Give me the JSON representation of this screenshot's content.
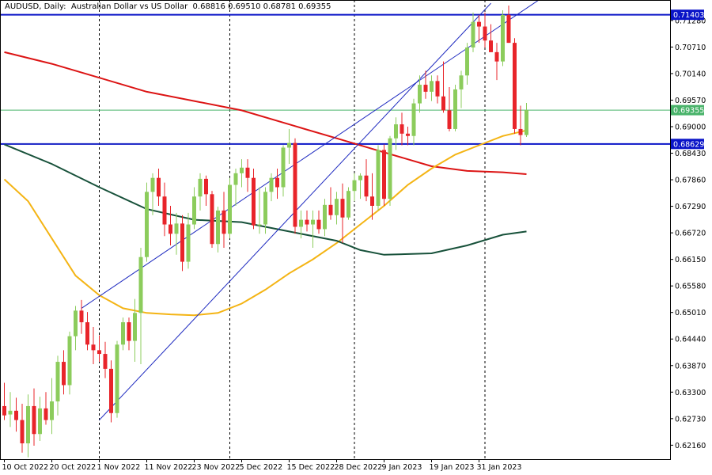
{
  "header": {
    "symbol": "AUDUSD",
    "timeframe": "Daily",
    "description": "Australian Dollar vs US Dollar",
    "ohlc": "0.68816 0.69510 0.68781 0.69355",
    "text": "AUDUSD, Daily:  Australian Dollar vs US Dollar  0.68816 0.69510 0.68781 0.69355"
  },
  "colors": {
    "bull": "#8ccc5c",
    "bear": "#e8242a",
    "ma_red": "#dc1414",
    "ma_orange": "#f4b414",
    "ma_green": "#17513a",
    "level": "#0a14c8",
    "channel": "#1f2bc0",
    "price_line": "#49b36a",
    "grid_v": "#000000"
  },
  "chart_data": {
    "type": "candlestick",
    "title": "AUDUSD, Daily: Australian Dollar vs US Dollar",
    "ylim": [
      0.6186,
      0.7172
    ],
    "y_ticks": [
      "0.71280",
      "0.70710",
      "0.70140",
      "0.69570",
      "0.69000",
      "0.68430",
      "0.67860",
      "0.67290",
      "0.66720",
      "0.66150",
      "0.65580",
      "0.65010",
      "0.64440",
      "0.63870",
      "0.63300",
      "0.62730",
      "0.62160"
    ],
    "x_ticks": [
      {
        "label": "10 Oct 2022",
        "index": 0
      },
      {
        "label": "20 Oct 2022",
        "index": 8
      },
      {
        "label": "1 Nov 2022",
        "index": 16
      },
      {
        "label": "11 Nov 2022",
        "index": 24
      },
      {
        "label": "23 Nov 2022",
        "index": 32
      },
      {
        "label": "5 Dec 2022",
        "index": 40
      },
      {
        "label": "15 Dec 2022",
        "index": 48
      },
      {
        "label": "28 Dec 2022",
        "index": 56
      },
      {
        "label": "9 Jan 2023",
        "index": 64
      },
      {
        "label": "19 Jan 2023",
        "index": 72
      },
      {
        "label": "31 Jan 2023",
        "index": 80
      }
    ],
    "vertical_lines": [
      16,
      38,
      59,
      81
    ],
    "candles": [
      [
        0.63,
        0.635,
        0.627,
        0.628
      ],
      [
        0.6282,
        0.633,
        0.6255,
        0.629
      ],
      [
        0.629,
        0.6318,
        0.6245,
        0.627
      ],
      [
        0.627,
        0.6305,
        0.62,
        0.622
      ],
      [
        0.622,
        0.6325,
        0.619,
        0.63
      ],
      [
        0.63,
        0.6338,
        0.6215,
        0.624
      ],
      [
        0.624,
        0.632,
        0.6225,
        0.6295
      ],
      [
        0.6295,
        0.633,
        0.626,
        0.627
      ],
      [
        0.627,
        0.636,
        0.624,
        0.631
      ],
      [
        0.631,
        0.6408,
        0.628,
        0.6395
      ],
      [
        0.6395,
        0.642,
        0.6325,
        0.6345
      ],
      [
        0.6345,
        0.646,
        0.6325,
        0.645
      ],
      [
        0.645,
        0.6515,
        0.642,
        0.6505
      ],
      [
        0.6505,
        0.6528,
        0.6455,
        0.648
      ],
      [
        0.648,
        0.6502,
        0.642,
        0.6432
      ],
      [
        0.6432,
        0.647,
        0.639,
        0.642
      ],
      [
        0.642,
        0.6452,
        0.6395,
        0.6412
      ],
      [
        0.6412,
        0.6438,
        0.636,
        0.638
      ],
      [
        0.638,
        0.6398,
        0.6265,
        0.6285
      ],
      [
        0.6285,
        0.644,
        0.6275,
        0.6432
      ],
      [
        0.6432,
        0.649,
        0.642,
        0.648
      ],
      [
        0.648,
        0.649,
        0.642,
        0.644
      ],
      [
        0.644,
        0.653,
        0.6395,
        0.65
      ],
      [
        0.65,
        0.664,
        0.639,
        0.662
      ],
      [
        0.662,
        0.678,
        0.661,
        0.676
      ],
      [
        0.676,
        0.68,
        0.671,
        0.679
      ],
      [
        0.679,
        0.681,
        0.673,
        0.675
      ],
      [
        0.675,
        0.678,
        0.6665,
        0.669
      ],
      [
        0.669,
        0.673,
        0.6645,
        0.667
      ],
      [
        0.667,
        0.6715,
        0.6625,
        0.6692
      ],
      [
        0.6692,
        0.671,
        0.659,
        0.661
      ],
      [
        0.661,
        0.6715,
        0.6595,
        0.669
      ],
      [
        0.669,
        0.677,
        0.668,
        0.675
      ],
      [
        0.675,
        0.68,
        0.672,
        0.6788
      ],
      [
        0.6788,
        0.6795,
        0.673,
        0.6755
      ],
      [
        0.6755,
        0.6762,
        0.664,
        0.6648
      ],
      [
        0.6648,
        0.6728,
        0.663,
        0.672
      ],
      [
        0.672,
        0.676,
        0.664,
        0.667
      ],
      [
        0.667,
        0.679,
        0.666,
        0.6775
      ],
      [
        0.6775,
        0.681,
        0.673,
        0.68
      ],
      [
        0.68,
        0.683,
        0.677,
        0.6812
      ],
      [
        0.6812,
        0.683,
        0.676,
        0.679
      ],
      [
        0.679,
        0.681,
        0.668,
        0.6688
      ],
      [
        0.6688,
        0.677,
        0.667,
        0.669
      ],
      [
        0.669,
        0.677,
        0.667,
        0.676
      ],
      [
        0.676,
        0.68,
        0.674,
        0.679
      ],
      [
        0.679,
        0.681,
        0.6745,
        0.677
      ],
      [
        0.677,
        0.686,
        0.675,
        0.6855
      ],
      [
        0.6855,
        0.6895,
        0.682,
        0.6865
      ],
      [
        0.6865,
        0.6875,
        0.667,
        0.6685
      ],
      [
        0.6685,
        0.672,
        0.666,
        0.67
      ],
      [
        0.67,
        0.672,
        0.6675,
        0.669
      ],
      [
        0.669,
        0.672,
        0.664,
        0.67
      ],
      [
        0.67,
        0.672,
        0.667,
        0.668
      ],
      [
        0.668,
        0.6745,
        0.6665,
        0.6732
      ],
      [
        0.6732,
        0.677,
        0.67,
        0.671
      ],
      [
        0.671,
        0.676,
        0.669,
        0.6745
      ],
      [
        0.6745,
        0.6778,
        0.665,
        0.6705
      ],
      [
        0.6705,
        0.677,
        0.67,
        0.6762
      ],
      [
        0.6762,
        0.68,
        0.674,
        0.6785
      ],
      [
        0.6785,
        0.68,
        0.6745,
        0.6795
      ],
      [
        0.6795,
        0.683,
        0.674,
        0.675
      ],
      [
        0.675,
        0.68,
        0.67,
        0.673
      ],
      [
        0.673,
        0.686,
        0.672,
        0.685
      ],
      [
        0.685,
        0.6862,
        0.673,
        0.6745
      ],
      [
        0.6745,
        0.688,
        0.673,
        0.6875
      ],
      [
        0.6875,
        0.692,
        0.685,
        0.6905
      ],
      [
        0.6905,
        0.693,
        0.686,
        0.6885
      ],
      [
        0.6885,
        0.69,
        0.686,
        0.688
      ],
      [
        0.688,
        0.696,
        0.686,
        0.695
      ],
      [
        0.695,
        0.701,
        0.693,
        0.699
      ],
      [
        0.699,
        0.702,
        0.696,
        0.6975
      ],
      [
        0.6975,
        0.701,
        0.6955,
        0.6998
      ],
      [
        0.6998,
        0.701,
        0.695,
        0.6965
      ],
      [
        0.6965,
        0.704,
        0.693,
        0.6935
      ],
      [
        0.6935,
        0.6985,
        0.689,
        0.6895
      ],
      [
        0.6895,
        0.699,
        0.689,
        0.698
      ],
      [
        0.698,
        0.702,
        0.694,
        0.701
      ],
      [
        0.701,
        0.708,
        0.699,
        0.707
      ],
      [
        0.707,
        0.7145,
        0.706,
        0.7125
      ],
      [
        0.7125,
        0.714,
        0.708,
        0.7115
      ],
      [
        0.7115,
        0.7145,
        0.707,
        0.7085
      ],
      [
        0.7085,
        0.712,
        0.706,
        0.706
      ],
      [
        0.706,
        0.708,
        0.7,
        0.704
      ],
      [
        0.704,
        0.715,
        0.703,
        0.714
      ],
      [
        0.714,
        0.716,
        0.708,
        0.708
      ],
      [
        0.708,
        0.709,
        0.6885,
        0.6895
      ],
      [
        0.6895,
        0.6945,
        0.686,
        0.6882
      ],
      [
        0.6882,
        0.6951,
        0.6878,
        0.69355
      ]
    ],
    "ma_red": [
      [
        0,
        0.706
      ],
      [
        8,
        0.7035
      ],
      [
        16,
        0.7005
      ],
      [
        24,
        0.6975
      ],
      [
        32,
        0.6955
      ],
      [
        40,
        0.6935
      ],
      [
        48,
        0.6905
      ],
      [
        56,
        0.6875
      ],
      [
        64,
        0.6845
      ],
      [
        72,
        0.6815
      ],
      [
        78,
        0.6805
      ],
      [
        84,
        0.6802
      ],
      [
        88,
        0.6798
      ]
    ],
    "ma_orange": [
      [
        0,
        0.6787
      ],
      [
        4,
        0.674
      ],
      [
        8,
        0.666
      ],
      [
        12,
        0.658
      ],
      [
        16,
        0.6538
      ],
      [
        20,
        0.651
      ],
      [
        24,
        0.65
      ],
      [
        28,
        0.6497
      ],
      [
        32,
        0.6495
      ],
      [
        36,
        0.65
      ],
      [
        40,
        0.652
      ],
      [
        44,
        0.655
      ],
      [
        48,
        0.6585
      ],
      [
        52,
        0.6615
      ],
      [
        56,
        0.665
      ],
      [
        60,
        0.669
      ],
      [
        64,
        0.673
      ],
      [
        68,
        0.6775
      ],
      [
        72,
        0.681
      ],
      [
        76,
        0.684
      ],
      [
        80,
        0.686
      ],
      [
        84,
        0.688
      ],
      [
        88,
        0.6892
      ]
    ],
    "ma_green": [
      [
        0,
        0.6862
      ],
      [
        8,
        0.682
      ],
      [
        16,
        0.677
      ],
      [
        24,
        0.6723
      ],
      [
        32,
        0.67
      ],
      [
        40,
        0.6695
      ],
      [
        48,
        0.6675
      ],
      [
        56,
        0.6655
      ],
      [
        60,
        0.6635
      ],
      [
        64,
        0.6625
      ],
      [
        72,
        0.6628
      ],
      [
        78,
        0.6645
      ],
      [
        84,
        0.6668
      ],
      [
        88,
        0.6675
      ]
    ],
    "levels": [
      {
        "price": 0.71403,
        "label": "0.71403"
      },
      {
        "price": 0.68629,
        "label": "0.68629"
      }
    ],
    "current_price": {
      "price": 0.69355,
      "label": "0.69355"
    },
    "channel_lines": [
      {
        "from": [
          16,
          0.627
        ],
        "to": [
          82,
          0.7165
        ]
      },
      {
        "from": [
          13,
          0.651
        ],
        "to": [
          91,
          0.718
        ]
      },
      {
        "from": [
          0,
          0.6863
        ],
        "to": [
          49,
          0.6863
        ]
      }
    ]
  }
}
